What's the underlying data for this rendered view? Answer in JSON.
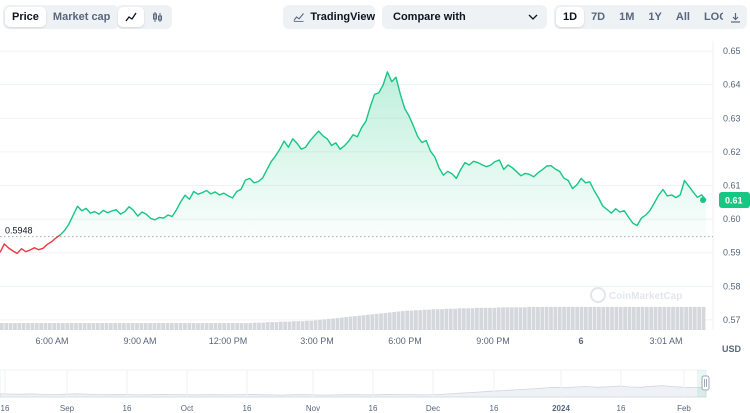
{
  "toolbar": {
    "metric_tabs": [
      {
        "label": "Price",
        "active": true
      },
      {
        "label": "Market cap",
        "active": false
      }
    ],
    "chart_style_icons": [
      "line-chart-icon",
      "candlestick-icon"
    ],
    "tradingview_label": "TradingView",
    "compare_label": "Compare with",
    "ranges": [
      {
        "label": "1D",
        "active": true
      },
      {
        "label": "7D",
        "active": false
      },
      {
        "label": "1M",
        "active": false
      },
      {
        "label": "1Y",
        "active": false
      },
      {
        "label": "All",
        "active": false
      },
      {
        "label": "LOG",
        "active": false
      }
    ],
    "download_icon": "download-icon"
  },
  "colors": {
    "up": "#16c784",
    "down": "#ea3943",
    "volume": "#d4d8dd"
  },
  "watermark": "CoinMarketCap",
  "chart_data": {
    "type": "area",
    "y_axis_label": "USD",
    "y_ticks": [
      0.57,
      0.58,
      0.59,
      0.6,
      0.61,
      0.62,
      0.63,
      0.64,
      0.65
    ],
    "ylim": [
      0.567,
      0.653
    ],
    "x_ticks": [
      "6:00 AM",
      "9:00 AM",
      "12:00 PM",
      "3:00 PM",
      "6:00 PM",
      "9:00 PM",
      "6",
      "3:01 AM"
    ],
    "open_price": 0.5948,
    "open_label": "0.5948",
    "current_price": 0.6057,
    "current_label": "0.61",
    "series": [
      {
        "name": "",
        "values": [
          0.5901,
          0.5926,
          0.5914,
          0.5905,
          0.5898,
          0.5912,
          0.5903,
          0.5908,
          0.5915,
          0.5909,
          0.5913,
          0.5925,
          0.5933,
          0.5944,
          0.5953,
          0.5966,
          0.5985,
          0.6012,
          0.6038,
          0.6025,
          0.6032,
          0.6018,
          0.6022,
          0.6015,
          0.6026,
          0.6019,
          0.6024,
          0.6028,
          0.6015,
          0.6022,
          0.6037,
          0.6026,
          0.6009,
          0.6021,
          0.6014,
          0.6002,
          0.5998,
          0.6005,
          0.6003,
          0.6012,
          0.6008,
          0.6028,
          0.6052,
          0.6071,
          0.6059,
          0.6082,
          0.6074,
          0.6079,
          0.6085,
          0.6075,
          0.6081,
          0.6072,
          0.6077,
          0.6069,
          0.6063,
          0.6082,
          0.6089,
          0.6116,
          0.6121,
          0.6108,
          0.6112,
          0.6122,
          0.6147,
          0.6171,
          0.6188,
          0.6208,
          0.6232,
          0.6214,
          0.6239,
          0.6226,
          0.6208,
          0.6214,
          0.6233,
          0.6248,
          0.6262,
          0.6248,
          0.6239,
          0.6219,
          0.6227,
          0.6208,
          0.6218,
          0.6232,
          0.6251,
          0.6245,
          0.6272,
          0.6291,
          0.6334,
          0.6371,
          0.6376,
          0.6399,
          0.6438,
          0.6409,
          0.6422,
          0.6371,
          0.6329,
          0.6307,
          0.6278,
          0.6246,
          0.6228,
          0.6234,
          0.6202,
          0.6185,
          0.6152,
          0.6131,
          0.6142,
          0.6135,
          0.6121,
          0.6147,
          0.6168,
          0.6161,
          0.6172,
          0.6168,
          0.6162,
          0.6156,
          0.6161,
          0.6171,
          0.6176,
          0.6148,
          0.6161,
          0.6153,
          0.6141,
          0.6129,
          0.6136,
          0.6133,
          0.6126,
          0.6138,
          0.6147,
          0.6158,
          0.6159,
          0.6149,
          0.6142,
          0.6122,
          0.6115,
          0.6091,
          0.6102,
          0.6121,
          0.6108,
          0.6111,
          0.6085,
          0.6064,
          0.6039,
          0.6029,
          0.6018,
          0.6031,
          0.6021,
          0.6025,
          0.6006,
          0.5988,
          0.5981,
          0.6003,
          0.6012,
          0.6026,
          0.6048,
          0.6071,
          0.6088,
          0.6069,
          0.6072,
          0.6064,
          0.6072,
          0.6115,
          0.6098,
          0.6081,
          0.6065,
          0.6072,
          0.6057
        ]
      }
    ],
    "volume": [
      0.15,
      0.15,
      0.15,
      0.15,
      0.15,
      0.15,
      0.15,
      0.15,
      0.15,
      0.15,
      0.15,
      0.15,
      0.15,
      0.15,
      0.15,
      0.15,
      0.15,
      0.15,
      0.15,
      0.15,
      0.15,
      0.15,
      0.15,
      0.15,
      0.15,
      0.15,
      0.15,
      0.15,
      0.15,
      0.15,
      0.15,
      0.15,
      0.15,
      0.15,
      0.15,
      0.15,
      0.15,
      0.15,
      0.15,
      0.15,
      0.15,
      0.15,
      0.15,
      0.15,
      0.15,
      0.15,
      0.15,
      0.15,
      0.15,
      0.15,
      0.15,
      0.15,
      0.15,
      0.15,
      0.15,
      0.15,
      0.15,
      0.15,
      0.16,
      0.16,
      0.16,
      0.17,
      0.17,
      0.17,
      0.18,
      0.18,
      0.18,
      0.19,
      0.19,
      0.19,
      0.2,
      0.2,
      0.21,
      0.22,
      0.23,
      0.24,
      0.25,
      0.26,
      0.27,
      0.28,
      0.29,
      0.3,
      0.31,
      0.32,
      0.33,
      0.34,
      0.35,
      0.36,
      0.37,
      0.38,
      0.39,
      0.4,
      0.41,
      0.42,
      0.42,
      0.43,
      0.43,
      0.44,
      0.44,
      0.45,
      0.45,
      0.45,
      0.46,
      0.46,
      0.46,
      0.47,
      0.47,
      0.47,
      0.47,
      0.48,
      0.48,
      0.48,
      0.48,
      0.48,
      0.49,
      0.49,
      0.49,
      0.49,
      0.49,
      0.49,
      0.49,
      0.5,
      0.5,
      0.5,
      0.5,
      0.5,
      0.5,
      0.5,
      0.5,
      0.5,
      0.5,
      0.5,
      0.5,
      0.5,
      0.5,
      0.5,
      0.5,
      0.5,
      0.5,
      0.5,
      0.5,
      0.5,
      0.5,
      0.5,
      0.5,
      0.5,
      0.5,
      0.5,
      0.5,
      0.5,
      0.5,
      0.5,
      0.5,
      0.5,
      0.5,
      0.5,
      0.5,
      0.5,
      0.5,
      0.5,
      0.5,
      0.5
    ]
  },
  "navigator": {
    "x_ticks": [
      "16",
      "Sep",
      "16",
      "Oct",
      "16",
      "Nov",
      "16",
      "Dec",
      "16",
      "2024",
      "16",
      "Feb"
    ],
    "bold_ticks": [
      "2024"
    ],
    "values": [
      0.2,
      0.18,
      0.17,
      0.19,
      0.16,
      0.15,
      0.17,
      0.2,
      0.18,
      0.15,
      0.14,
      0.16,
      0.15,
      0.13,
      0.14,
      0.16,
      0.15,
      0.14,
      0.13,
      0.15,
      0.14,
      0.13,
      0.15,
      0.16,
      0.14,
      0.13,
      0.12,
      0.14,
      0.15,
      0.13,
      0.12,
      0.13,
      0.14,
      0.15,
      0.13,
      0.14,
      0.16,
      0.15,
      0.14,
      0.13,
      0.15,
      0.18,
      0.22,
      0.26,
      0.3,
      0.35,
      0.38,
      0.42,
      0.46,
      0.5,
      0.55,
      0.6,
      0.58,
      0.62,
      0.65,
      0.6,
      0.63,
      0.68,
      0.62,
      0.6,
      0.66,
      0.7,
      0.64,
      0.6,
      0.58,
      0.62
    ]
  }
}
